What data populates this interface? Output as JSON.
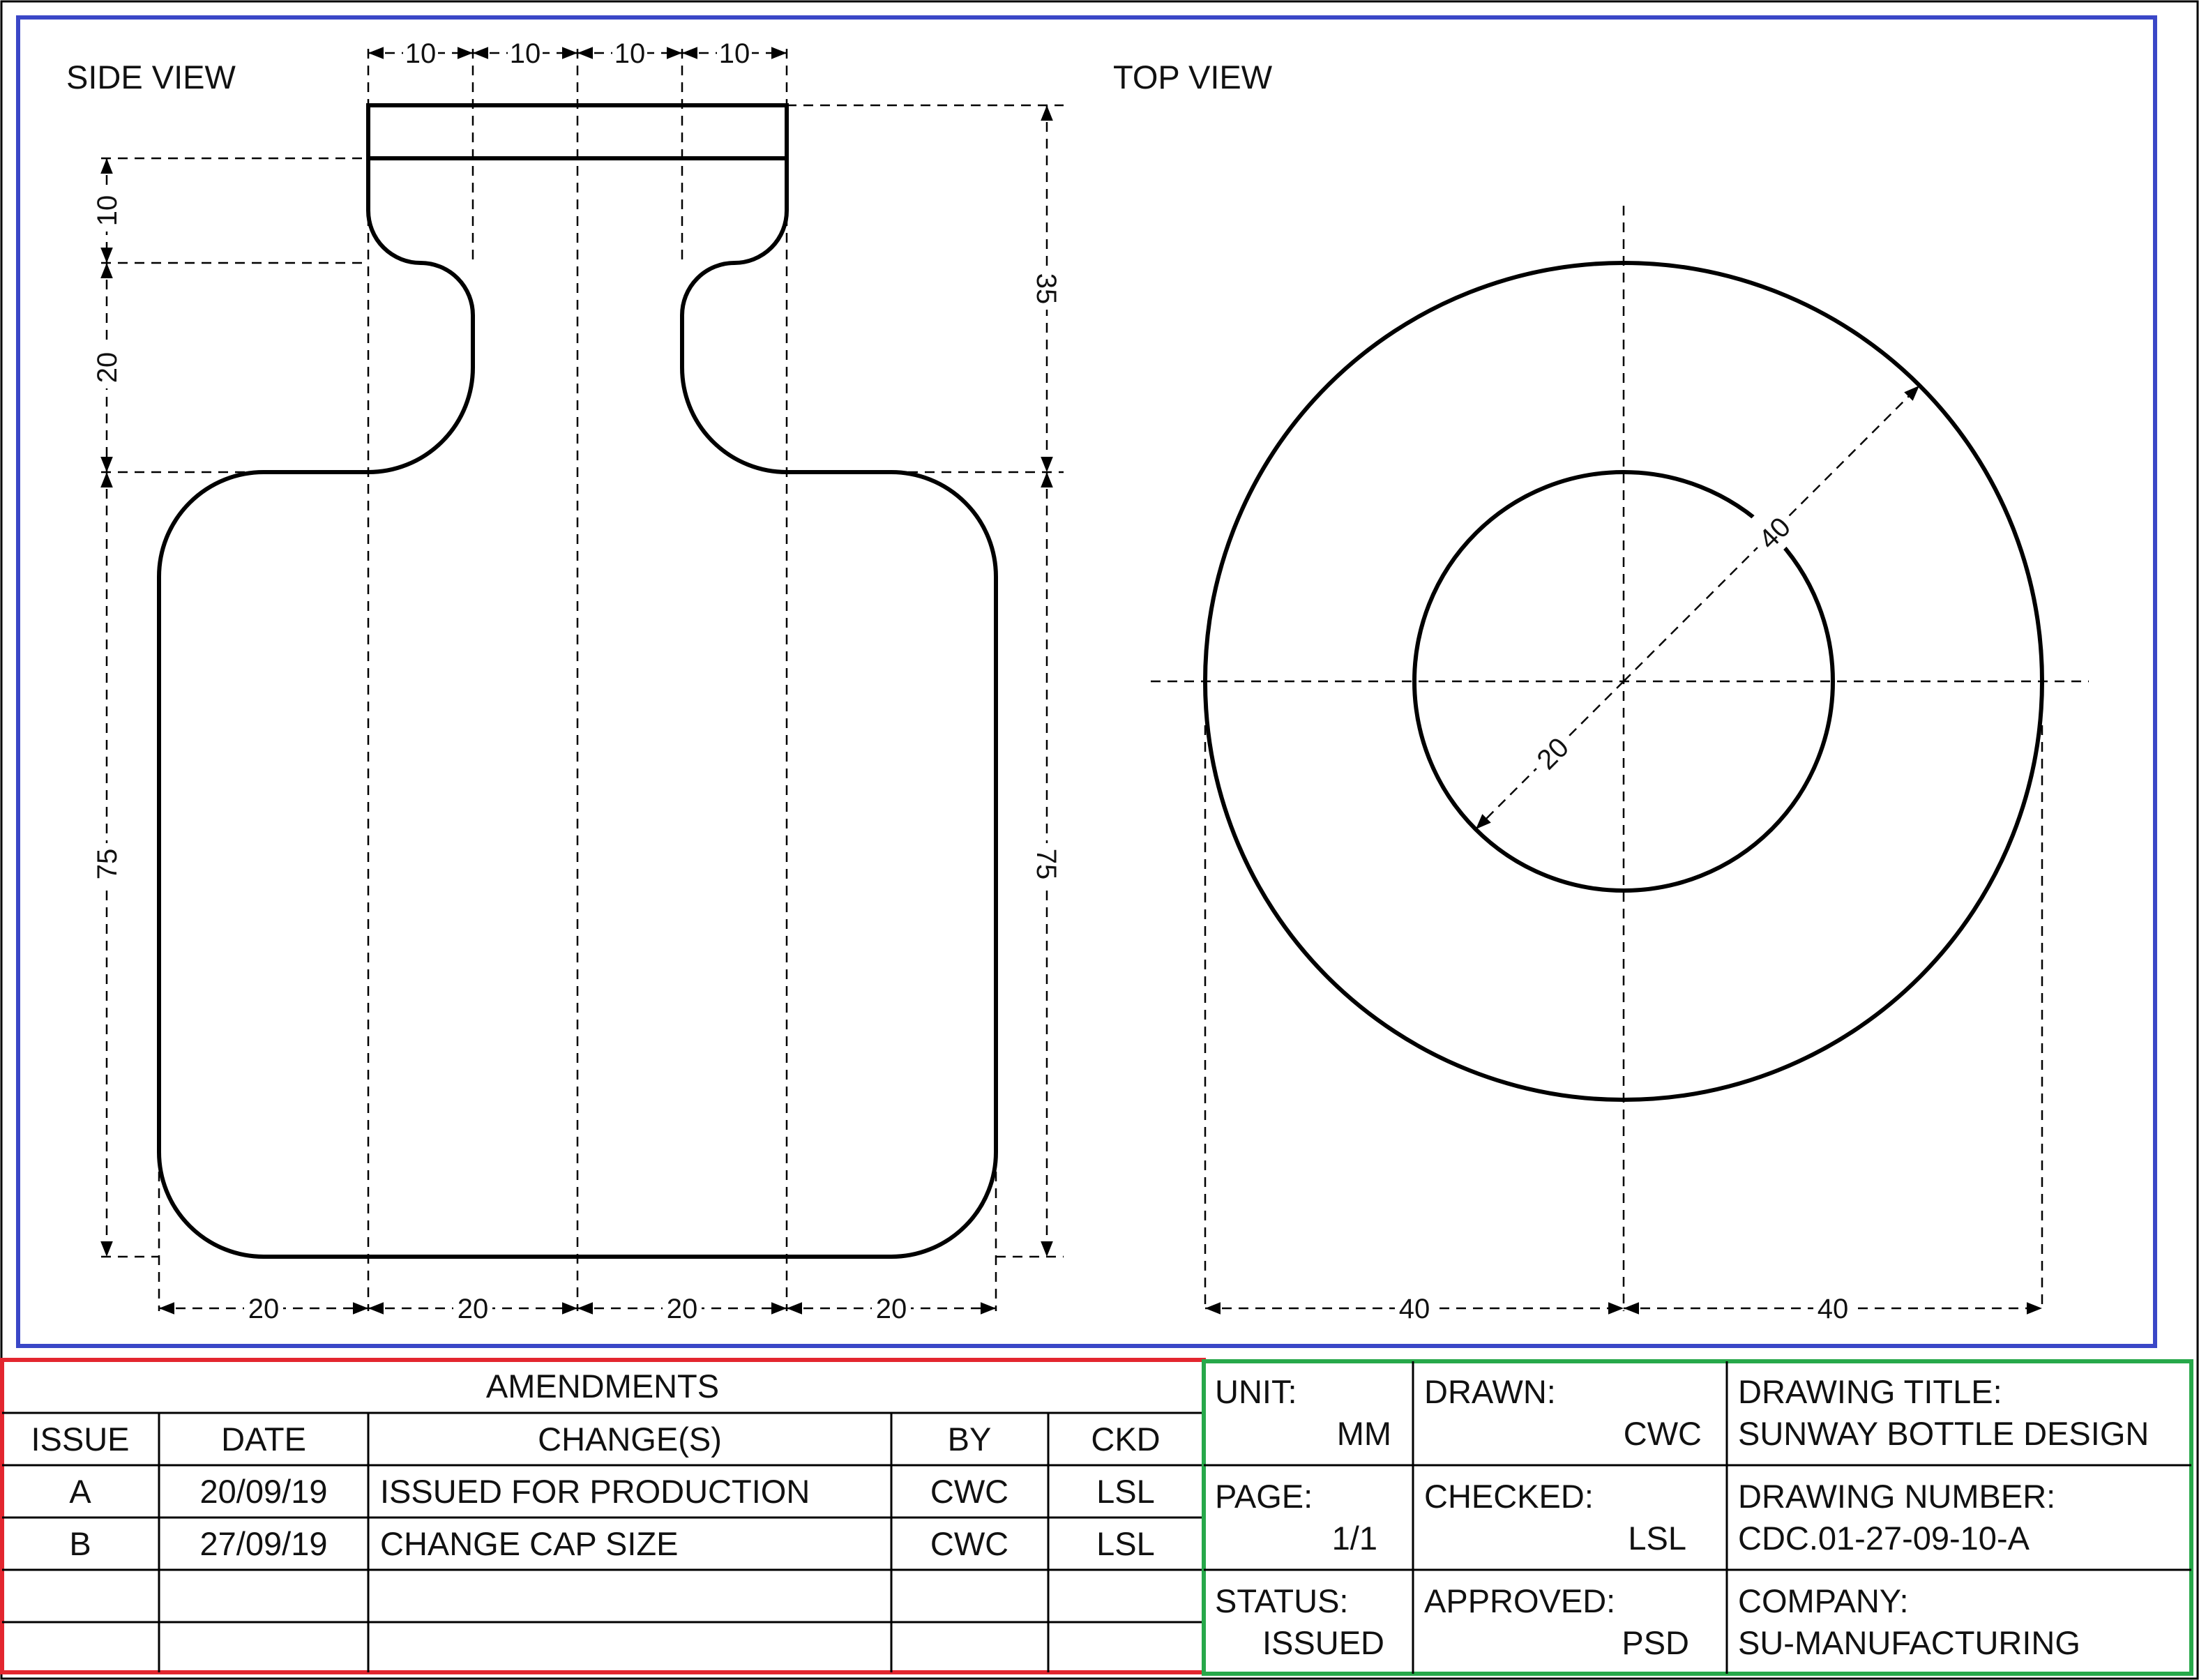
{
  "views": {
    "side_view_label": "SIDE VIEW",
    "top_view_label": "TOP VIEW"
  },
  "dimensions": {
    "side_top": [
      "10",
      "10",
      "10",
      "10"
    ],
    "side_bottom": [
      "20",
      "20",
      "20",
      "20"
    ],
    "side_left_cap": "10",
    "side_left_neck": "20",
    "side_left_body": "75",
    "side_right_top": "35",
    "side_right_body": "75",
    "top_outer_diameter": "40",
    "top_inner_diameter": "20",
    "top_bottom": [
      "40",
      "40"
    ]
  },
  "amendments": {
    "title": "AMENDMENTS",
    "headers": [
      "ISSUE",
      "DATE",
      "CHANGE(S)",
      "BY",
      "CKD"
    ],
    "rows": [
      [
        "A",
        "20/09/19",
        "ISSUED FOR PRODUCTION",
        "CWC",
        "LSL"
      ],
      [
        "B",
        "27/09/19",
        "CHANGE CAP SIZE",
        "CWC",
        "LSL"
      ],
      [
        "",
        "",
        "",
        "",
        ""
      ],
      [
        "",
        "",
        "",
        "",
        ""
      ]
    ]
  },
  "title_block": {
    "unit_label": "UNIT:",
    "unit_value": "MM",
    "drawn_label": "DRAWN:",
    "drawn_value": "CWC",
    "drawing_title_label": "DRAWING TITLE:",
    "drawing_title_value": "SUNWAY BOTTLE DESIGN",
    "page_label": "PAGE:",
    "page_value": "1/1",
    "checked_label": "CHECKED:",
    "checked_value": "LSL",
    "drawing_number_label": "DRAWING NUMBER:",
    "drawing_number_value": "CDC.01-27-09-10-A",
    "status_label": "STATUS:",
    "status_value": "ISSUED",
    "approved_label": "APPROVED:",
    "approved_value": "PSD",
    "company_label": "COMPANY:",
    "company_value": "SU-MANUFACTURING"
  },
  "colors": {
    "drawing_frame": "#3a47c7",
    "amendments_frame": "#e3262f",
    "title_block_frame": "#27a84a"
  }
}
